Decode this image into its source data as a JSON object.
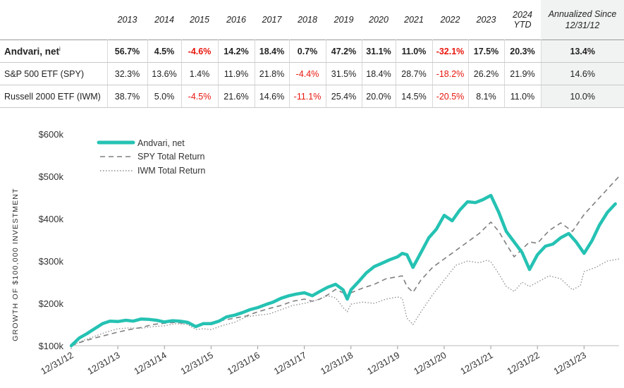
{
  "table": {
    "year_headers": [
      "2013",
      "2014",
      "2015",
      "2016",
      "2017",
      "2018",
      "2019",
      "2020",
      "2021",
      "2022",
      "2023"
    ],
    "ytd_header_line1": "2024",
    "ytd_header_line2": "YTD",
    "annualized_header_line1": "Annualized Since",
    "annualized_header_line2": "12/31/12",
    "rows": [
      {
        "name": "Andvari, net",
        "superscript": "i",
        "values": [
          "56.7%",
          "4.5%",
          "-4.6%",
          "14.2%",
          "18.4%",
          "0.7%",
          "47.2%",
          "31.1%",
          "11.0%",
          "-32.1%",
          "17.5%",
          "20.3%"
        ],
        "annualized": "13.4%"
      },
      {
        "name": "S&P 500 ETF (SPY)",
        "values": [
          "32.3%",
          "13.6%",
          "1.4%",
          "11.9%",
          "21.8%",
          "-4.4%",
          "31.5%",
          "18.4%",
          "28.7%",
          "-18.2%",
          "26.2%",
          "21.9%"
        ],
        "annualized": "14.6%"
      },
      {
        "name": "Russell 2000 ETF (IWM)",
        "values": [
          "38.7%",
          "5.0%",
          "-4.5%",
          "21.6%",
          "14.6%",
          "-11.1%",
          "25.4%",
          "20.0%",
          "14.5%",
          "-20.5%",
          "8.1%",
          "11.0%"
        ],
        "annualized": "10.0%"
      }
    ]
  },
  "colors": {
    "andvari": "#25c2b3",
    "spy": "#7f7f7f",
    "iwm": "#8c8c8c",
    "negative": "#e8160c",
    "annualized_bg": "#f1f2f2"
  },
  "chart_data": {
    "type": "line",
    "ylabel": "GROWTH OF $100,000 INVESTMENT",
    "xlabel": "",
    "y_tick_labels": [
      "$100k",
      "$200k",
      "$300k",
      "$400k",
      "$500k",
      "$600k"
    ],
    "y_ticks": [
      100000,
      200000,
      300000,
      400000,
      500000,
      600000
    ],
    "ylim": [
      100000,
      600000
    ],
    "x_tick_labels": [
      "12/31/12",
      "12/31/13",
      "12/31/14",
      "12/31/15",
      "12/31/16",
      "12/31/17",
      "12/31/18",
      "12/31/19",
      "12/31/20",
      "12/31/21",
      "12/31/22",
      "12/31/23"
    ],
    "x_ticks": [
      2012.999,
      2013.999,
      2014.999,
      2015.999,
      2016.999,
      2017.999,
      2018.999,
      2019.999,
      2020.999,
      2021.999,
      2022.999,
      2023.999
    ],
    "xlim": [
      2012.999,
      2024.75
    ],
    "grid": false,
    "legend_position": "top-left",
    "series": [
      {
        "name": "Andvari, net",
        "style": "solid-thick",
        "x": [
          2013.0,
          2013.17,
          2013.33,
          2013.5,
          2013.67,
          2013.83,
          2014.0,
          2014.17,
          2014.33,
          2014.5,
          2014.67,
          2014.83,
          2015.0,
          2015.17,
          2015.33,
          2015.5,
          2015.67,
          2015.83,
          2016.0,
          2016.17,
          2016.33,
          2016.5,
          2016.67,
          2016.83,
          2017.0,
          2017.17,
          2017.33,
          2017.5,
          2017.67,
          2017.83,
          2018.0,
          2018.17,
          2018.33,
          2018.5,
          2018.67,
          2018.83,
          2018.92,
          2019.0,
          2019.17,
          2019.33,
          2019.5,
          2019.67,
          2019.83,
          2020.0,
          2020.1,
          2020.2,
          2020.33,
          2020.5,
          2020.67,
          2020.83,
          2021.0,
          2021.17,
          2021.33,
          2021.5,
          2021.67,
          2021.83,
          2022.0,
          2022.17,
          2022.33,
          2022.5,
          2022.67,
          2022.83,
          2023.0,
          2023.17,
          2023.33,
          2023.5,
          2023.67,
          2023.83,
          2024.0,
          2024.17,
          2024.33,
          2024.5,
          2024.67
        ],
        "values": [
          100000,
          118000,
          128000,
          140000,
          152000,
          158000,
          157000,
          160000,
          158000,
          163000,
          162000,
          160000,
          156000,
          159000,
          158000,
          155000,
          145000,
          152000,
          152000,
          158000,
          168000,
          172000,
          178000,
          185000,
          190000,
          197000,
          203000,
          212000,
          218000,
          222000,
          225000,
          218000,
          228000,
          238000,
          245000,
          232000,
          210000,
          232000,
          252000,
          272000,
          287000,
          295000,
          303000,
          310000,
          318000,
          315000,
          285000,
          320000,
          355000,
          375000,
          408000,
          395000,
          420000,
          440000,
          438000,
          445000,
          455000,
          415000,
          370000,
          345000,
          320000,
          280000,
          315000,
          335000,
          340000,
          355000,
          365000,
          345000,
          318000,
          348000,
          385000,
          415000,
          435000
        ]
      },
      {
        "name": "SPY Total Return",
        "style": "dashed",
        "x": [
          2013.0,
          2013.25,
          2013.5,
          2013.75,
          2014.0,
          2014.25,
          2014.5,
          2014.75,
          2015.0,
          2015.25,
          2015.5,
          2015.67,
          2015.83,
          2016.0,
          2016.25,
          2016.5,
          2016.75,
          2017.0,
          2017.25,
          2017.5,
          2017.75,
          2018.0,
          2018.17,
          2018.33,
          2018.5,
          2018.67,
          2018.83,
          2018.92,
          2019.0,
          2019.25,
          2019.5,
          2019.75,
          2020.0,
          2020.1,
          2020.2,
          2020.33,
          2020.5,
          2020.75,
          2021.0,
          2021.25,
          2021.5,
          2021.75,
          2022.0,
          2022.17,
          2022.33,
          2022.5,
          2022.67,
          2022.83,
          2023.0,
          2023.25,
          2023.5,
          2023.75,
          2024.0,
          2024.25,
          2024.5,
          2024.75
        ],
        "values": [
          100000,
          110000,
          118000,
          125000,
          132000,
          138000,
          143000,
          150000,
          153000,
          155000,
          152000,
          145000,
          150000,
          155000,
          160000,
          165000,
          170000,
          180000,
          188000,
          195000,
          205000,
          210000,
          205000,
          210000,
          220000,
          233000,
          225000,
          212000,
          225000,
          236000,
          245000,
          258000,
          263000,
          265000,
          240000,
          226000,
          255000,
          285000,
          305000,
          325000,
          345000,
          365000,
          392000,
          370000,
          340000,
          310000,
          328000,
          345000,
          342000,
          372000,
          390000,
          370000,
          410000,
          440000,
          470000,
          500000
        ]
      },
      {
        "name": "IWM Total Return",
        "style": "dotted",
        "x": [
          2013.0,
          2013.25,
          2013.5,
          2013.75,
          2014.0,
          2014.25,
          2014.5,
          2014.75,
          2015.0,
          2015.25,
          2015.5,
          2015.67,
          2015.83,
          2016.0,
          2016.25,
          2016.5,
          2016.75,
          2017.0,
          2017.25,
          2017.5,
          2017.75,
          2018.0,
          2018.25,
          2018.5,
          2018.67,
          2018.83,
          2018.92,
          2019.0,
          2019.25,
          2019.5,
          2019.75,
          2020.0,
          2020.1,
          2020.2,
          2020.33,
          2020.5,
          2020.75,
          2021.0,
          2021.25,
          2021.5,
          2021.75,
          2021.92,
          2022.0,
          2022.17,
          2022.33,
          2022.5,
          2022.67,
          2022.83,
          2023.0,
          2023.25,
          2023.5,
          2023.75,
          2023.92,
          2024.0,
          2024.25,
          2024.5,
          2024.75
        ],
        "values": [
          100000,
          112000,
          122000,
          132000,
          140000,
          142000,
          141000,
          145000,
          147000,
          152000,
          150000,
          138000,
          140000,
          138000,
          148000,
          155000,
          168000,
          172000,
          175000,
          185000,
          195000,
          200000,
          207000,
          218000,
          213000,
          190000,
          180000,
          198000,
          203000,
          200000,
          210000,
          215000,
          212000,
          165000,
          150000,
          180000,
          220000,
          255000,
          290000,
          300000,
          296000,
          302000,
          298000,
          270000,
          240000,
          228000,
          250000,
          240000,
          250000,
          265000,
          258000,
          232000,
          242000,
          275000,
          285000,
          300000,
          305000
        ]
      }
    ]
  }
}
